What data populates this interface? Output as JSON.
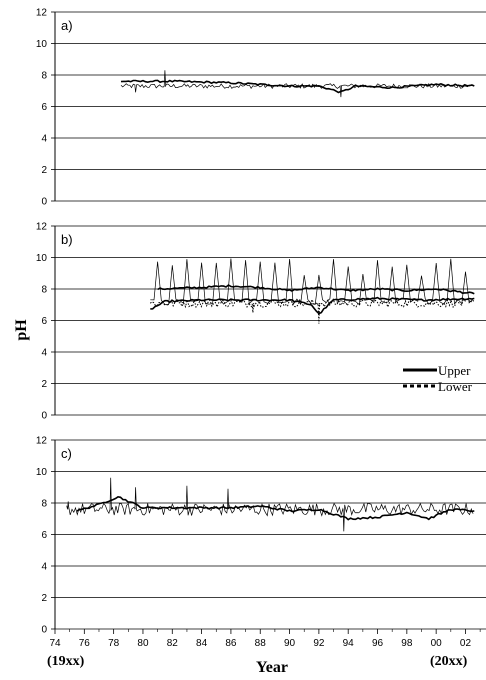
{
  "chart_data": {
    "type": "line",
    "ylabel": "pH",
    "xlabel": "Year",
    "x_start_label": "(19xx)",
    "x_end_label": "(20xx)",
    "xtick_labels": [
      "74",
      "76",
      "78",
      "80",
      "82",
      "84",
      "86",
      "88",
      "90",
      "92",
      "94",
      "96",
      "98",
      "00",
      "02"
    ],
    "ytick_labels": [
      "0",
      "2",
      "4",
      "6",
      "8",
      "10",
      "12"
    ],
    "ylim": [
      0,
      12
    ],
    "legend": {
      "position": "lower-right of panel b",
      "entries": [
        {
          "label": "Upper",
          "style": "solid"
        },
        {
          "label": "Lower",
          "style": "dotted"
        }
      ]
    },
    "panels": [
      {
        "label": "a)",
        "series": [
          {
            "style": "thin",
            "x_from": 78.5,
            "x_to": 102.6,
            "mean": 7.3,
            "noise": 0.15,
            "spikes": [
              [
                81.5,
                8.3
              ],
              [
                79.5,
                6.9
              ],
              [
                93.5,
                6.6
              ]
            ]
          },
          {
            "style": "smooth",
            "x_from": 78.5,
            "x_to": 102.6,
            "points": [
              [
                78.5,
                7.6
              ],
              [
                82,
                7.6
              ],
              [
                86,
                7.5
              ],
              [
                90,
                7.3
              ],
              [
                92,
                7.3
              ],
              [
                93.5,
                6.9
              ],
              [
                94.5,
                7.3
              ],
              [
                97,
                7.2
              ],
              [
                100,
                7.4
              ],
              [
                102.6,
                7.3
              ]
            ]
          }
        ]
      },
      {
        "label": "b)",
        "series": [
          {
            "style": "thin",
            "x_from": 80.5,
            "x_to": 102.6,
            "sawtooth": true,
            "low": 7.2,
            "high": 10.0,
            "period": 1.0
          },
          {
            "style": "smooth",
            "x_from": 81.0,
            "x_to": 102.6,
            "points": [
              [
                81,
                8.0
              ],
              [
                84,
                8.1
              ],
              [
                86,
                8.2
              ],
              [
                88,
                8.1
              ],
              [
                90,
                7.9
              ],
              [
                92,
                8.1
              ],
              [
                94,
                7.9
              ],
              [
                96,
                8.0
              ],
              [
                98,
                7.9
              ],
              [
                100,
                8.0
              ],
              [
                102.6,
                7.7
              ]
            ]
          },
          {
            "style": "smooth",
            "x_from": 80.5,
            "x_to": 102.6,
            "points": [
              [
                80.5,
                6.7
              ],
              [
                81.5,
                7.2
              ],
              [
                84,
                7.3
              ],
              [
                88,
                7.3
              ],
              [
                90,
                7.3
              ],
              [
                91.5,
                7.0
              ],
              [
                92,
                6.4
              ],
              [
                93,
                7.3
              ],
              [
                96,
                7.4
              ],
              [
                99,
                7.3
              ],
              [
                102.6,
                7.4
              ]
            ]
          },
          {
            "style": "dotted",
            "x_from": 80.5,
            "x_to": 102.6,
            "mean": 7.1,
            "noise": 0.25,
            "spikes": [
              [
                92,
                5.8
              ],
              [
                87.5,
                6.5
              ]
            ]
          }
        ]
      },
      {
        "label": "c)",
        "series": [
          {
            "style": "thin",
            "x_from": 74.8,
            "x_to": 102.6,
            "mean": 7.6,
            "noise": 0.4,
            "spikes": [
              [
                77.8,
                9.6
              ],
              [
                79.5,
                9.0
              ],
              [
                83,
                9.1
              ],
              [
                85.8,
                8.9
              ],
              [
                93.7,
                6.2
              ],
              [
                74.9,
                8.1
              ]
            ]
          },
          {
            "style": "smooth",
            "x_from": 75.5,
            "x_to": 102.6,
            "points": [
              [
                75.5,
                7.5
              ],
              [
                77,
                7.9
              ],
              [
                78.3,
                8.4
              ],
              [
                80,
                7.7
              ],
              [
                83,
                7.7
              ],
              [
                86,
                7.7
              ],
              [
                88,
                7.8
              ],
              [
                90,
                7.5
              ],
              [
                92,
                7.6
              ],
              [
                94,
                7.0
              ],
              [
                96,
                7.1
              ],
              [
                98,
                7.4
              ],
              [
                99.5,
                7.0
              ],
              [
                101,
                7.6
              ],
              [
                102.6,
                7.5
              ]
            ]
          }
        ]
      }
    ]
  }
}
